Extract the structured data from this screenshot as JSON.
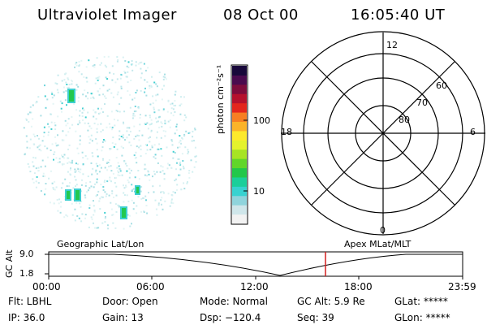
{
  "header": {
    "instrument": "Ultraviolet Imager",
    "date": "08 Oct 00",
    "time": "16:05:40 UT"
  },
  "colorbar": {
    "unit_label": "photon cm⁻²s⁻¹",
    "ticks": [
      "100",
      "10"
    ],
    "colors": [
      "#f2f2f2",
      "#cfe6ea",
      "#8fd4dc",
      "#38d2d0",
      "#1bcf9a",
      "#22c74a",
      "#61d62a",
      "#a7e424",
      "#e4f22c",
      "#fde92c",
      "#fbb329",
      "#f77f23",
      "#e3261d",
      "#b5112d",
      "#7d0c3c",
      "#4a0a4e",
      "#18083a"
    ]
  },
  "polar_plot": {
    "lat_labels": [
      "60",
      "70",
      "80"
    ],
    "mlt_labels": {
      "top": "12",
      "bottom": "0",
      "left": "18",
      "right": "6"
    }
  },
  "timeline": {
    "left_title": "Geographic Lat/Lon",
    "right_title": "Apex MLat/MLT",
    "axis_label": "GC Alt",
    "y_ticks": [
      "9.0",
      "1.8"
    ],
    "x_ticks": [
      "00:00",
      "06:00",
      "12:00",
      "18:00",
      "23:59"
    ],
    "marker_color": "#d21f1f"
  },
  "info": {
    "flt": "Flt: LBHL",
    "ip": "IP: 36.0",
    "door": "Door: Open",
    "gain": "Gain: 13",
    "mode": "Mode: Normal",
    "dsp": "Dsp: −120.4",
    "gc_alt": "GC Alt: 5.9 Re",
    "seq": "Seq: 39",
    "glat": "GLat: *****",
    "glon": "GLon: *****"
  }
}
